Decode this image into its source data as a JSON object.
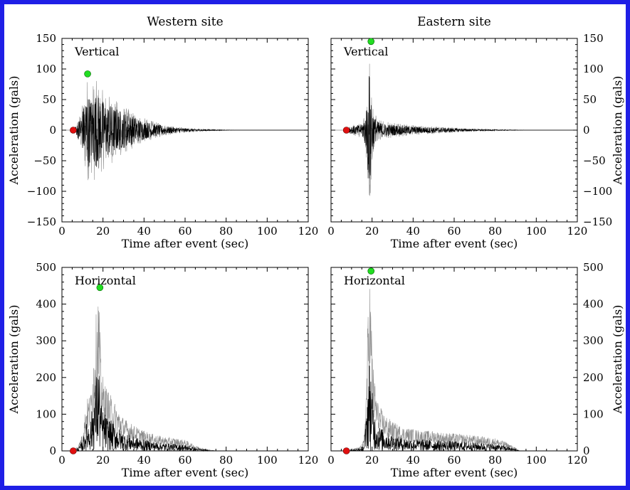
{
  "colors": {
    "frame": "#1f1fe6",
    "background": "#ffffff",
    "trace": "#000000",
    "trace_light": "#8c8c8c",
    "start_marker": "#e01010",
    "peak_marker": "#22dd22"
  },
  "chart_data": [
    {
      "type": "line",
      "column_title": "Western site",
      "panel_label": "Vertical",
      "xlabel": "Time after event (sec)",
      "ylabel": "Acceleration (gals)",
      "xlim": [
        0,
        120
      ],
      "ylim": [
        -150,
        150
      ],
      "xticks": [
        0,
        20,
        40,
        60,
        80,
        100,
        120
      ],
      "yticks": [
        -150,
        -100,
        -50,
        0,
        50,
        100,
        150
      ],
      "y_axis_side": "left",
      "symmetric": true,
      "trace_envelope": [
        [
          0,
          0
        ],
        [
          5,
          0
        ],
        [
          7,
          10
        ],
        [
          9,
          30
        ],
        [
          11,
          60
        ],
        [
          12,
          92
        ],
        [
          14,
          70
        ],
        [
          16,
          85
        ],
        [
          18,
          75
        ],
        [
          20,
          65
        ],
        [
          23,
          58
        ],
        [
          26,
          50
        ],
        [
          30,
          40
        ],
        [
          35,
          30
        ],
        [
          40,
          20
        ],
        [
          45,
          14
        ],
        [
          50,
          9
        ],
        [
          55,
          6
        ],
        [
          60,
          4
        ],
        [
          65,
          2.5
        ],
        [
          70,
          1.5
        ],
        [
          75,
          1
        ],
        [
          80,
          0.5
        ],
        [
          85,
          0
        ],
        [
          120,
          0
        ]
      ],
      "start_marker": {
        "x": 5.5,
        "y": 0
      },
      "peak_marker": {
        "x": 12.5,
        "y": 92
      }
    },
    {
      "type": "line",
      "column_title": "Eastern site",
      "panel_label": "Vertical",
      "xlabel": "Time after event (sec)",
      "ylabel": "Acceleration (gals)",
      "xlim": [
        0,
        120
      ],
      "ylim": [
        -150,
        150
      ],
      "xticks": [
        0,
        20,
        40,
        60,
        80,
        100,
        120
      ],
      "yticks": [
        -150,
        -100,
        -50,
        0,
        50,
        100,
        150
      ],
      "y_axis_side": "right",
      "symmetric": true,
      "trace_envelope": [
        [
          0,
          0
        ],
        [
          7,
          0
        ],
        [
          9,
          6
        ],
        [
          12,
          10
        ],
        [
          15,
          12
        ],
        [
          17,
          40
        ],
        [
          18,
          100
        ],
        [
          19,
          145
        ],
        [
          20,
          60
        ],
        [
          21,
          30
        ],
        [
          23,
          18
        ],
        [
          26,
          14
        ],
        [
          30,
          12
        ],
        [
          40,
          8
        ],
        [
          50,
          6
        ],
        [
          60,
          4
        ],
        [
          70,
          2
        ],
        [
          80,
          1
        ],
        [
          90,
          0.5
        ],
        [
          95,
          0
        ],
        [
          120,
          0
        ]
      ],
      "start_marker": {
        "x": 7.5,
        "y": 0
      },
      "peak_marker": {
        "x": 19.5,
        "y": 145
      }
    },
    {
      "type": "line",
      "column_title": "",
      "panel_label": "Horizontal",
      "xlabel": "Time after event (sec)",
      "ylabel": "Acceleration (gals)",
      "xlim": [
        0,
        120
      ],
      "ylim": [
        0,
        500
      ],
      "xticks": [
        0,
        20,
        40,
        60,
        80,
        100,
        120
      ],
      "yticks": [
        0,
        100,
        200,
        300,
        400,
        500
      ],
      "y_axis_side": "left",
      "symmetric": false,
      "trace_envelope": [
        [
          0,
          0
        ],
        [
          5,
          0
        ],
        [
          8,
          15
        ],
        [
          10,
          50
        ],
        [
          12,
          140
        ],
        [
          14,
          160
        ],
        [
          16,
          320
        ],
        [
          17,
          400
        ],
        [
          18,
          445
        ],
        [
          19,
          240
        ],
        [
          20,
          200
        ],
        [
          22,
          170
        ],
        [
          25,
          140
        ],
        [
          30,
          90
        ],
        [
          35,
          70
        ],
        [
          40,
          55
        ],
        [
          45,
          45
        ],
        [
          50,
          38
        ],
        [
          55,
          35
        ],
        [
          60,
          30
        ],
        [
          65,
          15
        ],
        [
          70,
          5
        ],
        [
          75,
          0
        ],
        [
          120,
          0
        ]
      ],
      "start_marker": {
        "x": 5.5,
        "y": 0
      },
      "peak_marker": {
        "x": 18.5,
        "y": 445
      }
    },
    {
      "type": "line",
      "column_title": "",
      "panel_label": "Horizontal",
      "xlabel": "Time after event (sec)",
      "ylabel": "Acceleration (gals)",
      "xlim": [
        0,
        120
      ],
      "ylim": [
        0,
        500
      ],
      "xticks": [
        0,
        20,
        40,
        60,
        80,
        100,
        120
      ],
      "yticks": [
        0,
        100,
        200,
        300,
        400,
        500
      ],
      "y_axis_side": "right",
      "symmetric": false,
      "trace_envelope": [
        [
          0,
          0
        ],
        [
          7,
          0
        ],
        [
          10,
          5
        ],
        [
          14,
          10
        ],
        [
          16,
          30
        ],
        [
          17,
          150
        ],
        [
          18,
          380
        ],
        [
          19,
          490
        ],
        [
          20,
          300
        ],
        [
          21,
          200
        ],
        [
          23,
          130
        ],
        [
          26,
          100
        ],
        [
          30,
          80
        ],
        [
          35,
          65
        ],
        [
          40,
          60
        ],
        [
          45,
          55
        ],
        [
          50,
          55
        ],
        [
          55,
          50
        ],
        [
          60,
          48
        ],
        [
          65,
          45
        ],
        [
          70,
          42
        ],
        [
          75,
          38
        ],
        [
          80,
          35
        ],
        [
          85,
          25
        ],
        [
          90,
          8
        ],
        [
          92,
          0
        ],
        [
          120,
          0
        ]
      ],
      "start_marker": {
        "x": 7.5,
        "y": 0
      },
      "peak_marker": {
        "x": 19.5,
        "y": 490
      }
    }
  ]
}
